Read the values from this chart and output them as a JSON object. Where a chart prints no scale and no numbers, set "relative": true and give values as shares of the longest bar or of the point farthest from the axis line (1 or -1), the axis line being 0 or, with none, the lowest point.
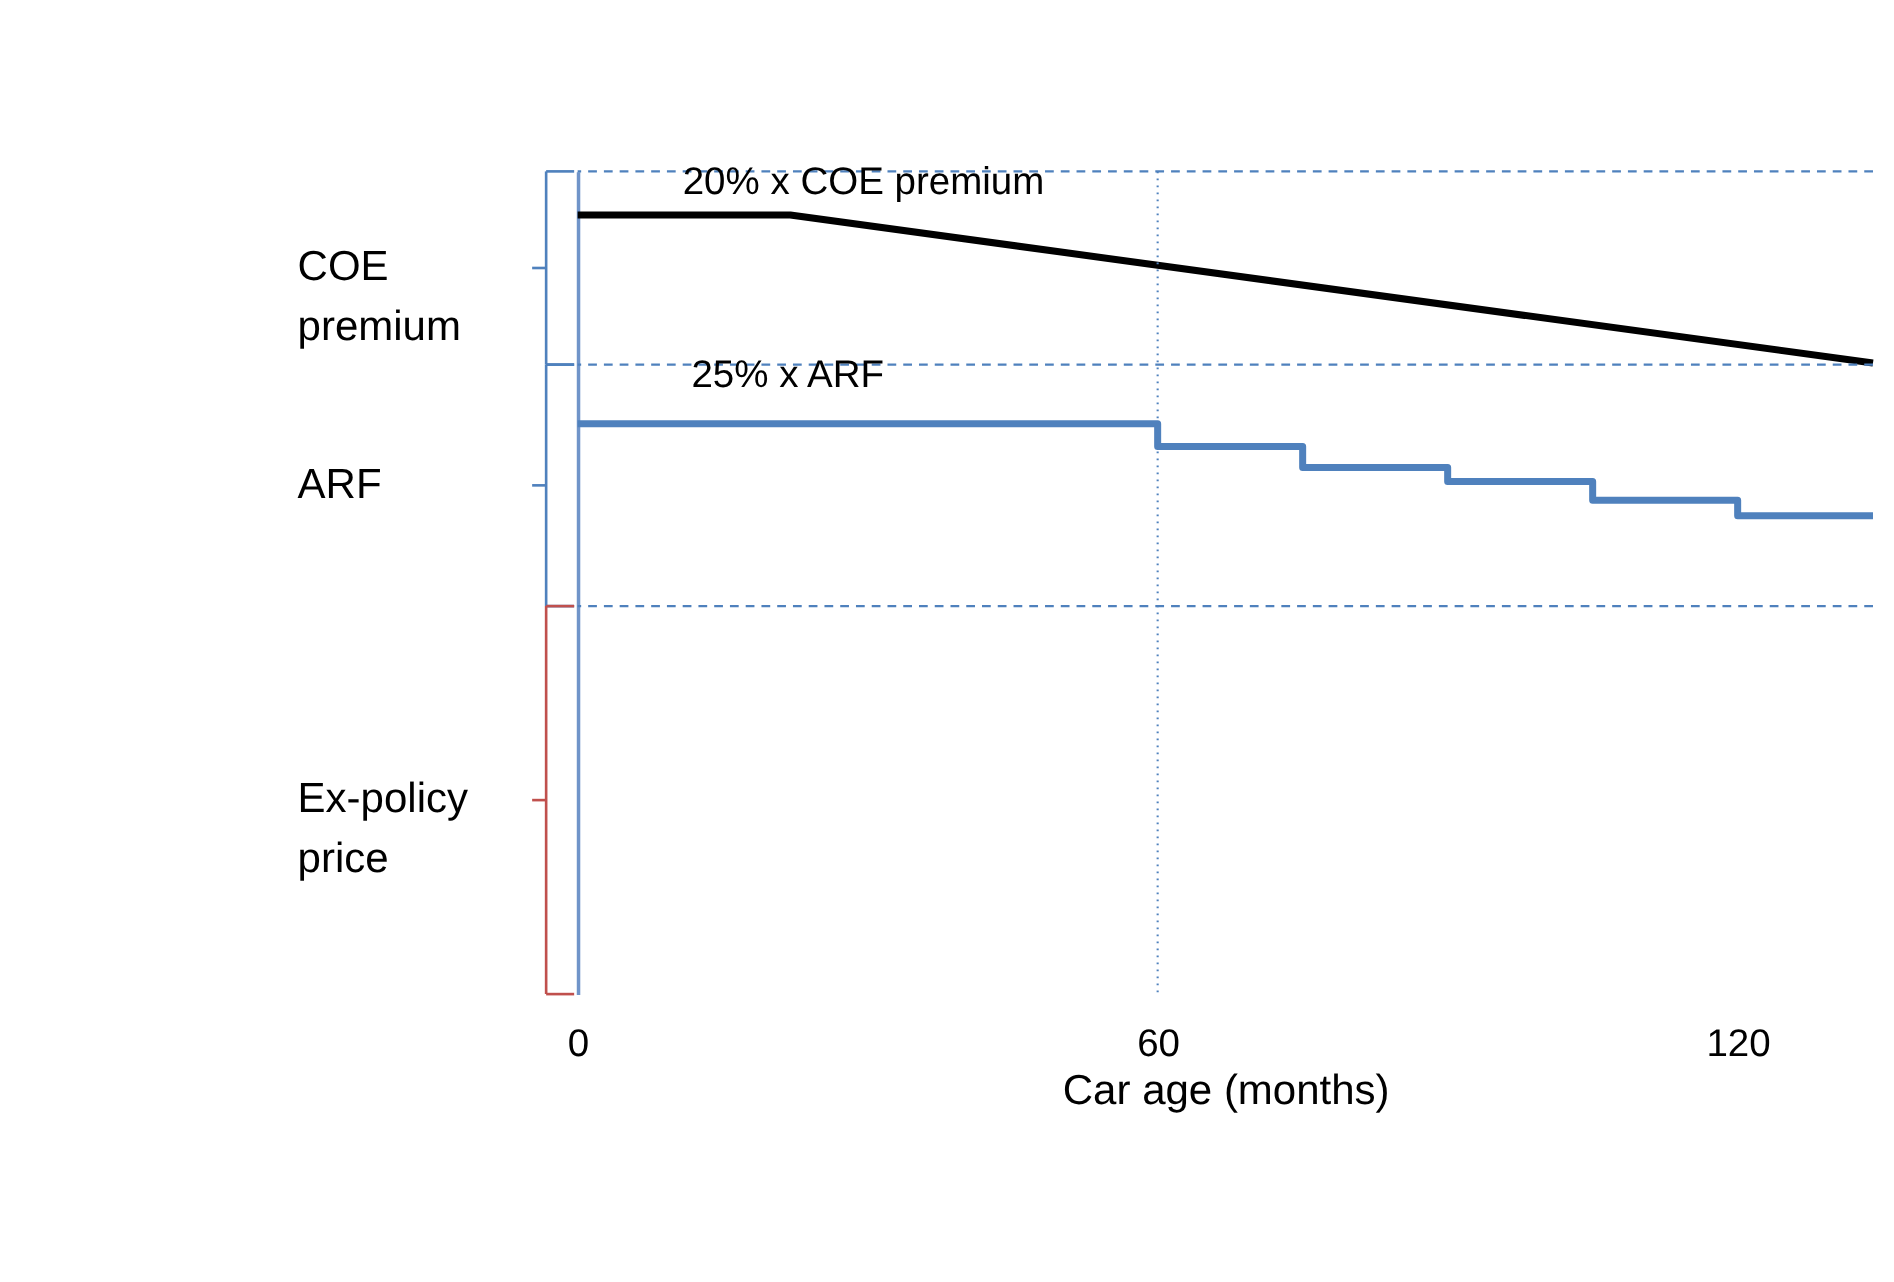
{
  "chart_data": {
    "type": "line",
    "xlabel": "Car age (months)",
    "relative": true,
    "xlim": [
      0,
      134
    ],
    "xticks": [
      0,
      60,
      120
    ],
    "grid": false,
    "series": [
      {
        "color": "#000000",
        "x": [
          0,
          22,
          134
        ],
        "values": [
          1,
          1,
          0.81
        ]
      },
      {
        "type": "step",
        "color": "#4f81bd",
        "x": [
          0,
          60,
          75,
          90,
          105,
          120,
          134
        ],
        "values": [
          0.732,
          0.703,
          0.676,
          0.658,
          0.634,
          0.614,
          0.614
        ]
      }
    ],
    "ref_lines": [
      {
        "axis": "y",
        "value": 1.056,
        "color": "#4f81bd",
        "line_style": "dashed"
      },
      {
        "axis": "y",
        "value": 0.808,
        "color": "#4f81bd",
        "line_style": "dashed"
      },
      {
        "axis": "y",
        "value": 0.498,
        "color": "#4f81bd",
        "line_style": "dashed"
      },
      {
        "axis": "x",
        "value": 60,
        "color": "#4f81bd",
        "line_style": "dotted"
      }
    ],
    "annotations": [
      "20% x COE premium",
      "25% x ARF",
      "COE premium",
      "ARF",
      "Ex-policy price"
    ]
  }
}
